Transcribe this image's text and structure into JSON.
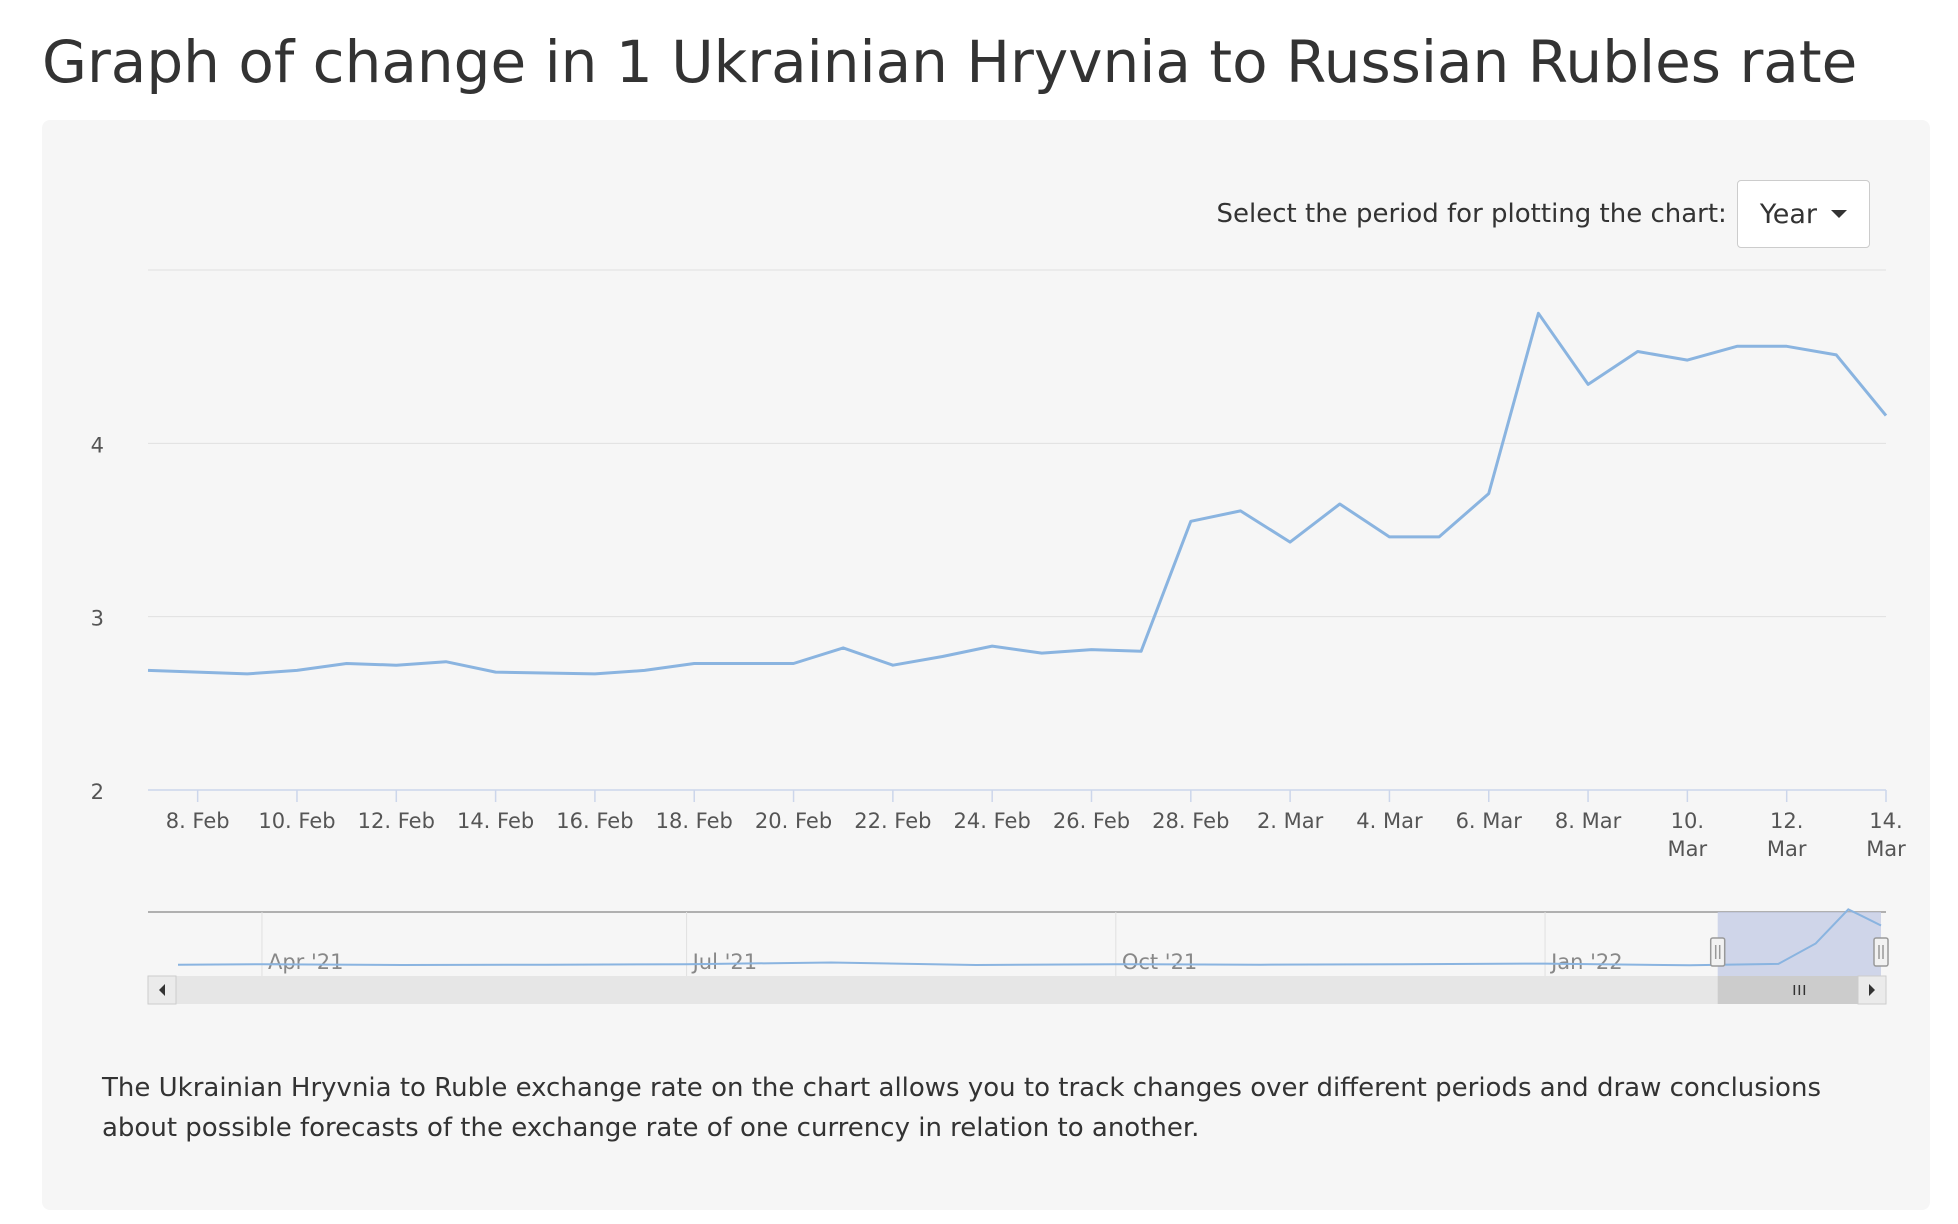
{
  "page": {
    "title": "Graph of change in 1 Ukrainian Hryvnia to Russian Rubles rate",
    "period_label": "Select the period for plotting the chart:",
    "period_value": "Year",
    "description": "The Ukrainian Hryvnia to Ruble exchange rate on the chart allows you to track changes over different periods and draw conclusions about possible forecasts of the exchange rate of one currency in relation to another."
  },
  "colors": {
    "line": "#8ab4e0",
    "grid": "#e0e0e0",
    "navigator_mask": "#c5cde6",
    "scrollbar_bg": "#e6e6e6",
    "scrollbar_thumb": "#cccccc"
  },
  "icons": {
    "dropdown": "caret-down-icon",
    "scroll_left": "triangle-left-icon",
    "scroll_right": "triangle-right-icon",
    "handle": "grip-icon"
  },
  "chart_data": {
    "type": "line",
    "title": "",
    "xlabel": "",
    "ylabel": "",
    "ylim": [
      2,
      5
    ],
    "y_ticks": [
      2,
      3,
      4
    ],
    "grid": true,
    "legend": "none",
    "x_tick_labels": [
      "8. Feb",
      "10. Feb",
      "12. Feb",
      "14. Feb",
      "16. Feb",
      "18. Feb",
      "20. Feb",
      "22. Feb",
      "24. Feb",
      "26. Feb",
      "28. Feb",
      "2. Mar",
      "4. Mar",
      "6. Mar",
      "8. Mar",
      "10. Mar",
      "12. Mar",
      "14. Mar"
    ],
    "series": [
      {
        "x": [
          "2022-02-07",
          "2022-02-09",
          "2022-02-10",
          "2022-02-11",
          "2022-02-12",
          "2022-02-13",
          "2022-02-14",
          "2022-02-16",
          "2022-02-17",
          "2022-02-18",
          "2022-02-20",
          "2022-02-21",
          "2022-02-22",
          "2022-02-23",
          "2022-02-24",
          "2022-02-25",
          "2022-02-26",
          "2022-02-27",
          "2022-02-28",
          "2022-03-01",
          "2022-03-02",
          "2022-03-03",
          "2022-03-04",
          "2022-03-05",
          "2022-03-06",
          "2022-03-07",
          "2022-03-08",
          "2022-03-09",
          "2022-03-10",
          "2022-03-11",
          "2022-03-12",
          "2022-03-13",
          "2022-03-14"
        ],
        "values": [
          2.69,
          2.67,
          2.69,
          2.73,
          2.72,
          2.74,
          2.68,
          2.67,
          2.69,
          2.73,
          2.73,
          2.82,
          2.72,
          2.77,
          2.83,
          2.79,
          2.81,
          2.8,
          3.55,
          3.61,
          3.43,
          3.65,
          3.46,
          3.46,
          3.71,
          4.75,
          4.34,
          4.53,
          4.48,
          4.56,
          4.56,
          4.51,
          4.16
        ]
      }
    ],
    "navigator": {
      "labels": [
        "Apr '21",
        "Jul '21",
        "Oct '21",
        "Jan '22"
      ],
      "x": [
        "2021-03-14",
        "2021-04-01",
        "2021-05-01",
        "2021-06-01",
        "2021-07-01",
        "2021-08-01",
        "2021-09-01",
        "2021-10-01",
        "2021-11-01",
        "2021-12-01",
        "2022-01-01",
        "2022-02-01",
        "2022-02-20",
        "2022-02-28",
        "2022-03-07",
        "2022-03-10",
        "2022-03-14"
      ],
      "values": [
        2.72,
        2.74,
        2.71,
        2.72,
        2.74,
        2.8,
        2.71,
        2.74,
        2.72,
        2.74,
        2.76,
        2.7,
        2.75,
        3.5,
        4.75,
        4.5,
        4.16
      ],
      "selected_range": [
        "2022-02-07",
        "2022-03-14"
      ]
    }
  }
}
